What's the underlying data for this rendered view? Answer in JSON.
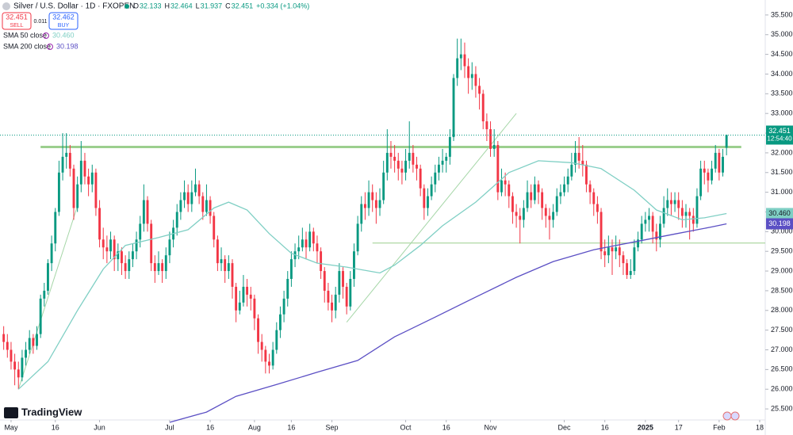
{
  "chart_data": {
    "type": "candlestick",
    "title": "Silver / U.S. Dollar · 1D · FXOPEN",
    "quote": [
      {
        "key": "O",
        "value": "32.133"
      },
      {
        "key": "H",
        "value": "32.464"
      },
      {
        "key": "L",
        "value": "31.937"
      },
      {
        "key": "C",
        "value": "32.451"
      }
    ],
    "change": "+0.334 (+1.04%)",
    "sell": {
      "price": "32.451",
      "label": "SELL"
    },
    "spread": "0.011",
    "buy": {
      "price": "32.462",
      "label": "BUY"
    },
    "brand": "TradingView",
    "up_color": "#089981",
    "down_color": "#f23645",
    "xlim": [
      -1,
      206.5
    ],
    "ylim": [
      25.22,
      35.88
    ],
    "grid": false,
    "xticks": [
      {
        "value": 2,
        "label": "May"
      },
      {
        "value": 14,
        "label": "16"
      },
      {
        "value": 26,
        "label": "Jun"
      },
      {
        "value": 45,
        "label": "Jul"
      },
      {
        "value": 56,
        "label": "16"
      },
      {
        "value": 68,
        "label": "Aug"
      },
      {
        "value": 78,
        "label": "16"
      },
      {
        "value": 89,
        "label": "Sep"
      },
      {
        "value": 109,
        "label": "Oct"
      },
      {
        "value": 120,
        "label": "16"
      },
      {
        "value": 132,
        "label": "Nov"
      },
      {
        "value": 152,
        "label": "Dec"
      },
      {
        "value": 163,
        "label": "16"
      },
      {
        "value": 174,
        "label": "2025"
      },
      {
        "value": 183,
        "label": "17"
      },
      {
        "value": 194,
        "label": "Feb"
      },
      {
        "value": 205,
        "label": "18"
      }
    ],
    "yticks": [
      {
        "value": 25.5,
        "label": "25.500"
      },
      {
        "value": 26,
        "label": "26.000"
      },
      {
        "value": 26.5,
        "label": "26.500"
      },
      {
        "value": 27,
        "label": "27.000"
      },
      {
        "value": 27.5,
        "label": "27.500"
      },
      {
        "value": 28,
        "label": "28.000"
      },
      {
        "value": 28.5,
        "label": "28.500"
      },
      {
        "value": 29,
        "label": "29.000"
      },
      {
        "value": 29.5,
        "label": "29.500"
      },
      {
        "value": 30,
        "label": "30.000"
      },
      {
        "value": 30.5,
        "label": "30.500"
      },
      {
        "value": 31,
        "label": "31.000"
      },
      {
        "value": 31.5,
        "label": "31.500"
      },
      {
        "value": 32,
        "label": "32.000"
      },
      {
        "value": 32.5,
        "label": "32.500"
      },
      {
        "value": 33,
        "label": "33.000"
      },
      {
        "value": 33.5,
        "label": "33.500"
      },
      {
        "value": 34,
        "label": "34.000"
      },
      {
        "value": 34.5,
        "label": "34.500"
      },
      {
        "value": 35,
        "label": "35.000"
      },
      {
        "value": 35.5,
        "label": "35.500"
      }
    ],
    "open": [
      27.4,
      27.2,
      27.0,
      26.7,
      26.5,
      26.3,
      26.8,
      27.0,
      27.3,
      27.1,
      27.4,
      28.3,
      28.5,
      29.2,
      29.7,
      30.5,
      31.5,
      31.9,
      32.0,
      31.6,
      30.6,
      31.2,
      31.8,
      31.4,
      31.2,
      31.5,
      30.6,
      29.8,
      29.6,
      29.5,
      29.8,
      29.3,
      29.5,
      29.2,
      29.0,
      29.3,
      29.5,
      29.8,
      30.2,
      30.8,
      30.2,
      29.2,
      29.0,
      29.2,
      29.0,
      29.4,
      29.8,
      30.1,
      30.5,
      30.8,
      31.0,
      30.7,
      31.0,
      31.2,
      30.9,
      30.5,
      30.8,
      30.4,
      29.8,
      29.2,
      29.3,
      29.0,
      29.2,
      28.6,
      28.0,
      28.2,
      28.6,
      28.4,
      28.3,
      27.8,
      27.2,
      27.0,
      26.7,
      26.6,
      27.0,
      27.5,
      27.9,
      28.3,
      28.8,
      29.3,
      29.5,
      29.6,
      29.8,
      29.6,
      30.0,
      29.7,
      29.5,
      29.0,
      28.5,
      28.2,
      28.0,
      28.4,
      29.0,
      28.6,
      28.1,
      28.8,
      29.5,
      30.2,
      30.7,
      30.6,
      31.0,
      30.8,
      30.6,
      30.8,
      31.5,
      32.0,
      31.9,
      31.8,
      31.6,
      31.5,
      31.8,
      32.0,
      31.7,
      31.6,
      31.1,
      30.6,
      30.9,
      31.2,
      31.5,
      31.7,
      31.8,
      31.9,
      32.4,
      33.9,
      34.4,
      34.5,
      34.2,
      33.9,
      34.0,
      33.7,
      33.5,
      32.8,
      32.6,
      32.1,
      32.2,
      31.0,
      31.3,
      31.2,
      30.9,
      30.5,
      30.4,
      30.3,
      30.6,
      31.0,
      30.8,
      31.2,
      31.0,
      30.6,
      30.4,
      30.3,
      30.5,
      30.9,
      31.0,
      31.2,
      31.4,
      31.7,
      32.0,
      31.8,
      31.7,
      31.2,
      31.0,
      30.7,
      30.5,
      29.5,
      29.4,
      29.6,
      29.5,
      29.6,
      29.4,
      29.2,
      28.9,
      29.0,
      29.6,
      29.8,
      30.2,
      30.3,
      30.4,
      30.0,
      29.8,
      30.2,
      30.6,
      30.8,
      30.7,
      30.8,
      30.6,
      30.4,
      30.5,
      30.4,
      30.2,
      30.9,
      31.6,
      31.5,
      31.3,
      31.6,
      32.0,
      31.5,
      32.133
    ],
    "high": [
      27.6,
      27.4,
      27.2,
      26.9,
      26.7,
      27.0,
      27.2,
      27.5,
      27.4,
      27.6,
      28.4,
      28.7,
      29.3,
      29.9,
      30.6,
      31.8,
      32.5,
      32.5,
      32.2,
      31.7,
      31.4,
      32.3,
      32.0,
      31.6,
      31.7,
      31.6,
      30.8,
      30.1,
      29.9,
      30.0,
      29.9,
      29.7,
      29.6,
      29.4,
      29.5,
      29.7,
      30.0,
      30.4,
      31.2,
      30.9,
      30.3,
      29.4,
      29.5,
      29.3,
      29.6,
      30.0,
      30.3,
      30.7,
      31.0,
      31.3,
      31.2,
      31.3,
      31.6,
      31.3,
      31.0,
      31.2,
      30.9,
      30.5,
      29.9,
      29.6,
      29.4,
      29.4,
      29.3,
      28.7,
      28.5,
      28.9,
      28.8,
      28.6,
      28.4,
      27.9,
      27.4,
      27.1,
      26.9,
      27.2,
      27.7,
      28.1,
      28.5,
      29.0,
      29.5,
      29.7,
      29.9,
      30.1,
      30.0,
      30.2,
      30.1,
      29.9,
      29.6,
      29.1,
      28.7,
      28.4,
      28.6,
      29.2,
      29.1,
      28.7,
      29.0,
      29.7,
      30.4,
      30.9,
      31.0,
      31.3,
      31.2,
      31.0,
      31.1,
      31.8,
      32.6,
      32.3,
      32.2,
      32.0,
      31.8,
      32.1,
      32.8,
      32.2,
      31.9,
      31.7,
      31.2,
      31.1,
      31.4,
      31.7,
      31.9,
      32.1,
      32.0,
      32.6,
      34.0,
      34.9,
      34.9,
      34.8,
      34.4,
      34.3,
      34.2,
      33.9,
      33.6,
      33.0,
      32.8,
      32.6,
      32.3,
      31.6,
      31.5,
      31.3,
      31.0,
      30.7,
      30.6,
      30.8,
      31.3,
      31.2,
      31.4,
      31.3,
      31.1,
      30.7,
      30.6,
      30.7,
      31.1,
      31.2,
      31.4,
      31.6,
      32.0,
      32.3,
      32.4,
      32.2,
      31.8,
      31.3,
      31.1,
      30.9,
      30.6,
      29.8,
      29.9,
      29.8,
      29.9,
      29.8,
      29.5,
      29.3,
      29.3,
      29.8,
      30.0,
      30.4,
      30.5,
      30.6,
      30.5,
      30.2,
      30.4,
      30.9,
      31.1,
      31.0,
      31.0,
      31.0,
      30.8,
      30.7,
      30.6,
      30.6,
      31.1,
      31.8,
      31.8,
      31.6,
      31.8,
      32.2,
      32.1,
      32.1,
      32.464
    ],
    "low": [
      27.0,
      26.8,
      26.5,
      26.1,
      26.0,
      26.2,
      26.6,
      26.9,
      26.9,
      27.0,
      27.3,
      28.1,
      28.4,
      29.0,
      29.5,
      30.4,
      31.3,
      31.6,
      31.4,
      30.3,
      30.5,
      31.0,
      31.2,
      30.9,
      31.0,
      30.4,
      29.6,
      29.3,
      29.2,
      29.3,
      29.0,
      29.0,
      28.9,
      28.8,
      28.8,
      29.1,
      29.3,
      29.6,
      30.0,
      30.0,
      29.0,
      28.7,
      28.9,
      28.7,
      28.8,
      29.2,
      29.6,
      29.9,
      30.3,
      30.6,
      30.5,
      30.5,
      30.9,
      30.7,
      30.3,
      30.4,
      30.2,
      29.6,
      29.0,
      29.0,
      28.7,
      28.8,
      28.3,
      27.7,
      27.9,
      28.1,
      28.1,
      28.0,
      27.5,
      26.9,
      26.7,
      26.4,
      26.4,
      26.5,
      26.9,
      27.3,
      27.7,
      28.1,
      28.6,
      29.1,
      29.3,
      29.5,
      29.3,
      29.5,
      29.5,
      29.2,
      28.8,
      28.2,
      28.0,
      27.7,
      27.8,
      28.2,
      28.3,
      27.9,
      28.0,
      28.6,
      29.4,
      30.0,
      30.3,
      30.4,
      30.5,
      30.2,
      30.4,
      30.7,
      31.3,
      31.6,
      31.5,
      31.3,
      31.2,
      31.3,
      31.6,
      31.5,
      31.3,
      30.9,
      30.3,
      30.4,
      30.8,
      31.0,
      31.3,
      31.5,
      31.5,
      31.7,
      32.3,
      33.7,
      34.1,
      33.9,
      33.5,
      33.6,
      33.4,
      33.1,
      32.6,
      32.3,
      31.9,
      31.9,
      30.8,
      30.9,
      30.9,
      30.6,
      30.2,
      30.1,
      29.7,
      30.1,
      30.5,
      30.6,
      30.7,
      30.7,
      30.3,
      30.1,
      29.8,
      30.1,
      30.4,
      30.7,
      30.9,
      31.0,
      31.3,
      31.5,
      31.6,
      31.4,
      31.0,
      30.7,
      30.4,
      30.2,
      29.3,
      29.1,
      29.2,
      28.9,
      29.3,
      29.1,
      28.9,
      28.8,
      28.8,
      28.9,
      29.5,
      29.7,
      30.0,
      30.0,
      29.7,
      29.5,
      29.6,
      30.1,
      30.4,
      30.4,
      30.5,
      30.3,
      30.1,
      30.1,
      29.8,
      30.0,
      30.1,
      30.8,
      31.2,
      31.0,
      31.2,
      31.5,
      31.3,
      31.4,
      31.937
    ],
    "close": [
      27.2,
      27.0,
      26.7,
      26.5,
      26.3,
      26.8,
      27.0,
      27.3,
      27.1,
      27.4,
      28.3,
      28.5,
      29.2,
      29.7,
      30.5,
      31.5,
      31.9,
      32.0,
      31.6,
      30.6,
      31.2,
      31.8,
      31.4,
      31.2,
      31.5,
      30.6,
      29.8,
      29.6,
      29.5,
      29.8,
      29.3,
      29.5,
      29.2,
      29.0,
      29.3,
      29.5,
      29.8,
      30.2,
      30.8,
      30.2,
      29.2,
      29.0,
      29.2,
      29.0,
      29.4,
      29.8,
      30.1,
      30.5,
      30.8,
      31.0,
      30.7,
      31.0,
      31.2,
      30.9,
      30.5,
      30.8,
      30.4,
      29.8,
      29.2,
      29.3,
      29.0,
      29.2,
      28.6,
      28.0,
      28.2,
      28.6,
      28.4,
      28.3,
      27.8,
      27.2,
      27.0,
      26.7,
      26.6,
      27.0,
      27.5,
      27.9,
      28.3,
      28.8,
      29.3,
      29.5,
      29.6,
      29.8,
      29.6,
      30.0,
      29.7,
      29.5,
      29.0,
      28.5,
      28.2,
      28.0,
      28.4,
      29.0,
      28.6,
      28.1,
      28.8,
      29.5,
      30.2,
      30.7,
      30.6,
      31.0,
      30.8,
      30.6,
      30.8,
      31.5,
      32.0,
      31.9,
      31.8,
      31.6,
      31.5,
      31.8,
      32.0,
      31.7,
      31.6,
      31.1,
      30.6,
      30.9,
      31.2,
      31.5,
      31.7,
      31.8,
      31.9,
      32.4,
      33.9,
      34.4,
      34.5,
      34.2,
      33.9,
      34.0,
      33.7,
      33.5,
      32.8,
      32.6,
      32.1,
      32.2,
      31.0,
      31.3,
      31.2,
      30.9,
      30.5,
      30.4,
      30.3,
      30.6,
      31.0,
      30.8,
      31.2,
      31.0,
      30.6,
      30.4,
      30.3,
      30.5,
      30.9,
      31.0,
      31.2,
      31.4,
      31.7,
      32.0,
      31.8,
      31.7,
      31.2,
      31.0,
      30.7,
      30.5,
      29.5,
      29.4,
      29.6,
      29.5,
      29.6,
      29.4,
      29.2,
      28.9,
      29.0,
      29.6,
      29.8,
      30.2,
      30.3,
      30.4,
      30.0,
      29.8,
      30.2,
      30.6,
      30.8,
      30.7,
      30.8,
      30.6,
      30.4,
      30.5,
      30.4,
      30.2,
      30.9,
      31.6,
      31.5,
      31.3,
      31.6,
      32.0,
      31.5,
      31.9,
      32.451
    ],
    "last_price_label": "32.451",
    "countdown": "12:54:40",
    "indicators": [
      {
        "name": "SMA 50 close",
        "color": "#7fcfc4",
        "badge_text_color": "#131722",
        "last": 30.46,
        "last_label": "30.460",
        "x": [
          4,
          12,
          20,
          27,
          33,
          42,
          50,
          57,
          61,
          66,
          72,
          78,
          85,
          93,
          102,
          106,
          113,
          119,
          128,
          137,
          145,
          154,
          162,
          171,
          177,
          184,
          190,
          196
        ],
        "values": [
          26.0,
          26.7,
          28.0,
          29.05,
          29.65,
          29.85,
          30.05,
          30.6,
          30.75,
          30.55,
          29.95,
          29.45,
          29.2,
          29.1,
          28.95,
          29.15,
          29.65,
          30.15,
          30.75,
          31.5,
          31.8,
          31.75,
          31.6,
          31.05,
          30.55,
          30.3,
          30.35,
          30.46
        ]
      },
      {
        "name": "SMA 200 close",
        "color": "#5b4fc4",
        "badge_text_color": "#ffffff",
        "last": 30.198,
        "last_label": "30.198",
        "x": [
          45,
          55,
          63,
          74,
          85,
          96,
          106,
          117,
          128,
          139,
          149,
          160,
          171,
          182,
          192,
          196
        ],
        "values": [
          25.16,
          25.42,
          25.82,
          26.12,
          26.43,
          26.73,
          27.33,
          27.83,
          28.34,
          28.84,
          29.24,
          29.54,
          29.74,
          29.94,
          30.12,
          30.198
        ]
      }
    ],
    "drawings": [
      {
        "x": [
          10,
          200
        ],
        "y": [
          32.15,
          32.15
        ],
        "color": "#9ccf8e",
        "width": 3
      },
      {
        "x": [
          100,
          206.5
        ],
        "y": [
          29.71,
          29.71
        ],
        "color": "#9ccf8e",
        "width": 1
      },
      {
        "x": [
          4,
          20
        ],
        "y": [
          26.0,
          30.65
        ],
        "color": "#a5d6a7",
        "width": 1
      },
      {
        "x": [
          93,
          139
        ],
        "y": [
          27.7,
          33.0
        ],
        "color": "#a5d6a7",
        "width": 1
      }
    ]
  }
}
